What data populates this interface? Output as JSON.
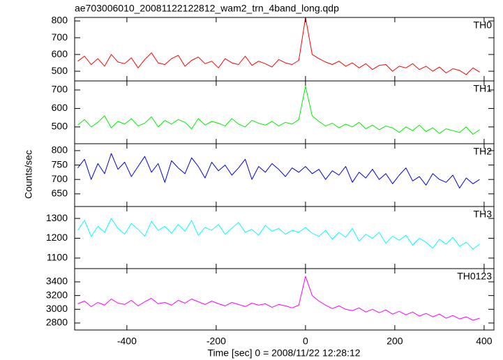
{
  "title": "ae703006010_20081122122812_wam2_trn_4band_long.qdp",
  "x_label": "Time [sec] 0 = 2008/11/22 12:28:12",
  "y_label": "Counts/sec",
  "x_axis": {
    "xlim": [
      -517,
      422
    ],
    "xticks": [
      -400,
      -200,
      0,
      200,
      400
    ],
    "x": [
      -510,
      -495,
      -480,
      -465,
      -450,
      -435,
      -420,
      -405,
      -390,
      -375,
      -360,
      -345,
      -330,
      -315,
      -300,
      -285,
      -270,
      -255,
      -240,
      -225,
      -210,
      -195,
      -180,
      -165,
      -150,
      -135,
      -120,
      -105,
      -90,
      -75,
      -60,
      -45,
      -30,
      -15,
      0,
      15,
      30,
      45,
      60,
      75,
      90,
      105,
      120,
      135,
      150,
      165,
      180,
      195,
      210,
      225,
      240,
      255,
      270,
      285,
      300,
      315,
      330,
      345,
      360,
      375,
      390
    ]
  },
  "chart_data": [
    {
      "type": "line",
      "name": "TH0",
      "color": "#ff0000",
      "ylim": [
        442,
        821
      ],
      "yticks": [
        500,
        600,
        700,
        800
      ],
      "values": [
        560,
        590,
        540,
        575,
        530,
        600,
        555,
        545,
        580,
        520,
        570,
        610,
        550,
        540,
        575,
        595,
        530,
        565,
        585,
        545,
        560,
        520,
        575,
        550,
        540,
        590,
        535,
        560,
        545,
        525,
        570,
        550,
        540,
        565,
        820,
        600,
        575,
        555,
        540,
        560,
        530,
        550,
        520,
        545,
        510,
        535,
        540,
        500,
        530,
        520,
        545,
        510,
        530,
        500,
        525,
        490,
        515,
        505,
        480,
        520,
        495
      ]
    },
    {
      "type": "line",
      "name": "TH1",
      "color": "#00ee00",
      "ylim": [
        409,
        749
      ],
      "yticks": [
        500,
        600,
        700
      ],
      "values": [
        510,
        540,
        500,
        525,
        560,
        495,
        530,
        515,
        545,
        505,
        520,
        555,
        500,
        535,
        515,
        540,
        525,
        490,
        545,
        510,
        530,
        520,
        505,
        545,
        515,
        500,
        535,
        520,
        510,
        530,
        505,
        525,
        515,
        540,
        720,
        560,
        530,
        505,
        520,
        495,
        515,
        500,
        525,
        490,
        510,
        485,
        505,
        495,
        470,
        500,
        480,
        510,
        475,
        495,
        465,
        490,
        480,
        470,
        500,
        460,
        485
      ]
    },
    {
      "type": "line",
      "name": "TH2",
      "color": "#0000ee",
      "ylim": [
        606,
        824
      ],
      "yticks": [
        650,
        700,
        750,
        800
      ],
      "values": [
        740,
        770,
        700,
        755,
        720,
        790,
        735,
        760,
        710,
        745,
        780,
        725,
        755,
        690,
        765,
        740,
        720,
        775,
        745,
        705,
        760,
        730,
        750,
        715,
        740,
        770,
        700,
        745,
        725,
        755,
        735,
        710,
        740,
        725,
        745,
        720,
        735,
        700,
        730,
        715,
        745,
        690,
        725,
        705,
        735,
        700,
        720,
        685,
        715,
        740,
        695,
        710,
        680,
        720,
        700,
        690,
        715,
        670,
        705,
        685,
        700
      ]
    },
    {
      "type": "line",
      "name": "TH3",
      "color": "#00ffff",
      "ylim": [
        1047,
        1360
      ],
      "yticks": [
        1100,
        1200,
        1300
      ],
      "values": [
        1240,
        1290,
        1210,
        1260,
        1230,
        1300,
        1250,
        1220,
        1275,
        1245,
        1210,
        1285,
        1240,
        1260,
        1225,
        1270,
        1235,
        1290,
        1215,
        1255,
        1240,
        1270,
        1220,
        1250,
        1280,
        1230,
        1245,
        1215,
        1265,
        1235,
        1250,
        1220,
        1240,
        1230,
        1255,
        1225,
        1210,
        1240,
        1195,
        1230,
        1205,
        1250,
        1185,
        1220,
        1200,
        1230,
        1175,
        1210,
        1190,
        1215,
        1165,
        1200,
        1180,
        1150,
        1195,
        1170,
        1205,
        1160,
        1180,
        1145,
        1170
      ]
    },
    {
      "type": "line",
      "name": "TH0123",
      "color": "#ff00ff",
      "ylim": [
        2698,
        3593
      ],
      "yticks": [
        2800,
        3000,
        3200,
        3400
      ],
      "values": [
        3080,
        3120,
        3040,
        3100,
        3060,
        3150,
        3090,
        3070,
        3130,
        3050,
        3110,
        3160,
        3080,
        3100,
        3060,
        3130,
        3090,
        3150,
        3110,
        3070,
        3120,
        3080,
        3050,
        3100,
        3070,
        3040,
        3090,
        3060,
        3080,
        3030,
        3070,
        3050,
        3020,
        3060,
        3480,
        3200,
        3120,
        3060,
        3010,
        3050,
        3000,
        2980,
        3020,
        2960,
        3000,
        2950,
        2990,
        2930,
        2970,
        2920,
        2960,
        2900,
        2940,
        2890,
        2930,
        2870,
        2910,
        2860,
        2890,
        2840,
        2870
      ]
    }
  ]
}
